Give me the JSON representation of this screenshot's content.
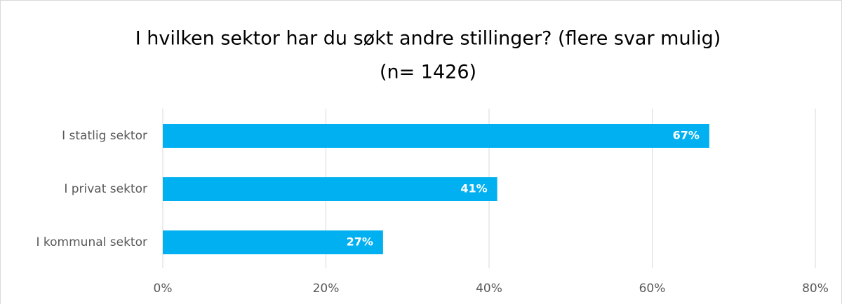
{
  "chart_data": {
    "type": "hbar",
    "title": "I hvilken sektor har du søkt andre stillinger? (flere svar mulig)",
    "subtitle": "(n= 1426)",
    "categories": [
      "I statlig sektor",
      "I privat sektor",
      "I kommunal sektor"
    ],
    "values": [
      67,
      41,
      27
    ],
    "value_labels": [
      "67%",
      "41%",
      "27%"
    ],
    "color": "#00b0f0",
    "xlim": [
      0,
      80
    ],
    "xticks": [
      {
        "value": 0,
        "label": "0%"
      },
      {
        "value": 20,
        "label": "20%"
      },
      {
        "value": 40,
        "label": "40%"
      },
      {
        "value": 60,
        "label": "60%"
      },
      {
        "value": 80,
        "label": "80%"
      }
    ],
    "grid": true
  }
}
